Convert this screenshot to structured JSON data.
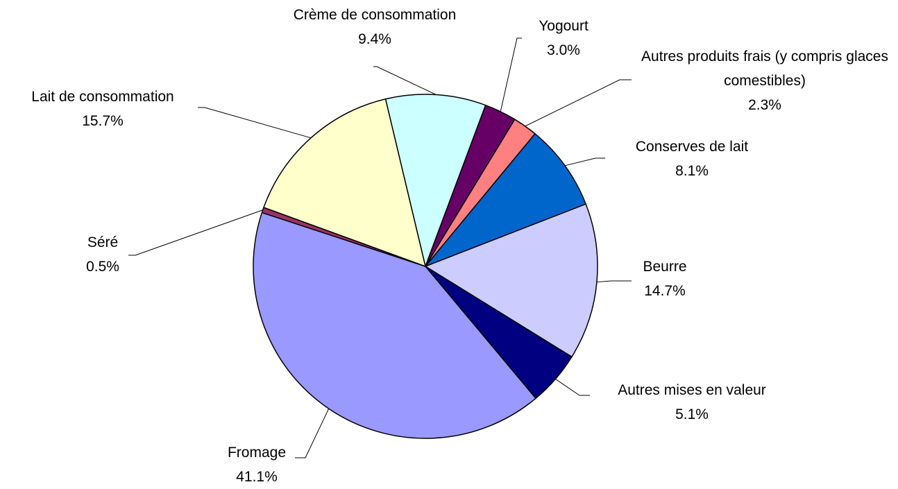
{
  "chart_data": {
    "type": "pie",
    "categories": [
      "Crème de consommation",
      "Yogourt",
      "Autres produits frais (y compris glaces comestibles)",
      "Conserves de lait",
      "Beurre",
      "Autres mises en valeur",
      "Fromage",
      "Séré",
      "Lait de consommation"
    ],
    "values": [
      9.4,
      3.0,
      2.3,
      8.1,
      14.7,
      5.1,
      41.1,
      0.5,
      15.7
    ],
    "value_labels": [
      "9.4%",
      "3.0%",
      "2.3%",
      "8.1%",
      "14.7%",
      "5.1%",
      "41.1%",
      "0.5%",
      "15.7%"
    ],
    "colors": [
      "#ccffff",
      "#660066",
      "#ff8080",
      "#0066cc",
      "#ccccff",
      "#000080",
      "#9999ff",
      "#993366",
      "#ffffcc"
    ]
  }
}
